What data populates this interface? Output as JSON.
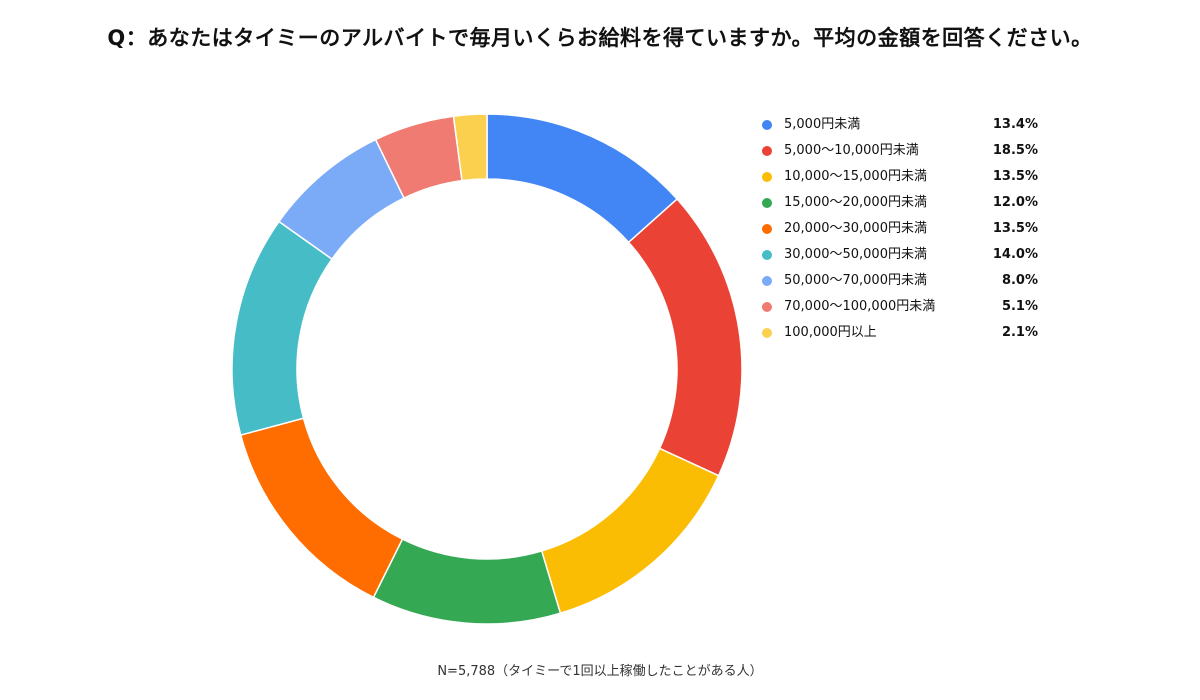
{
  "chart_data": {
    "type": "pie",
    "title": "Q：あなたはタイミーのアルバイトで毎月いくらお給料を得ていますか。平均の金額を回答ください。",
    "footnote": "N=5,788（タイミーで1回以上稼働したことがある人）",
    "legend_position": "right",
    "slices": [
      {
        "label": "5,000円未満",
        "value": 13.4,
        "value_label": "13.4%",
        "color": "#4285F4"
      },
      {
        "label": "5,000〜10,000円未満",
        "value": 18.5,
        "value_label": "18.5%",
        "color": "#EA4335"
      },
      {
        "label": "10,000〜15,000円未満",
        "value": 13.5,
        "value_label": "13.5%",
        "color": "#FBBC04"
      },
      {
        "label": "15,000〜20,000円未満",
        "value": 12.0,
        "value_label": "12.0%",
        "color": "#34A853"
      },
      {
        "label": "20,000〜30,000円未満",
        "value": 13.5,
        "value_label": "13.5%",
        "color": "#FF6D01"
      },
      {
        "label": "30,000〜50,000円未満",
        "value": 14.0,
        "value_label": "14.0%",
        "color": "#46BDC6"
      },
      {
        "label": "50,000〜70,000円未満",
        "value": 8.0,
        "value_label": "8.0%",
        "color": "#7BAAF7"
      },
      {
        "label": "70,000〜100,000円未満",
        "value": 5.1,
        "value_label": "5.1%",
        "color": "#F07B72"
      },
      {
        "label": "100,000円以上",
        "value": 2.1,
        "value_label": "2.1%",
        "color": "#FCD04F"
      }
    ]
  }
}
